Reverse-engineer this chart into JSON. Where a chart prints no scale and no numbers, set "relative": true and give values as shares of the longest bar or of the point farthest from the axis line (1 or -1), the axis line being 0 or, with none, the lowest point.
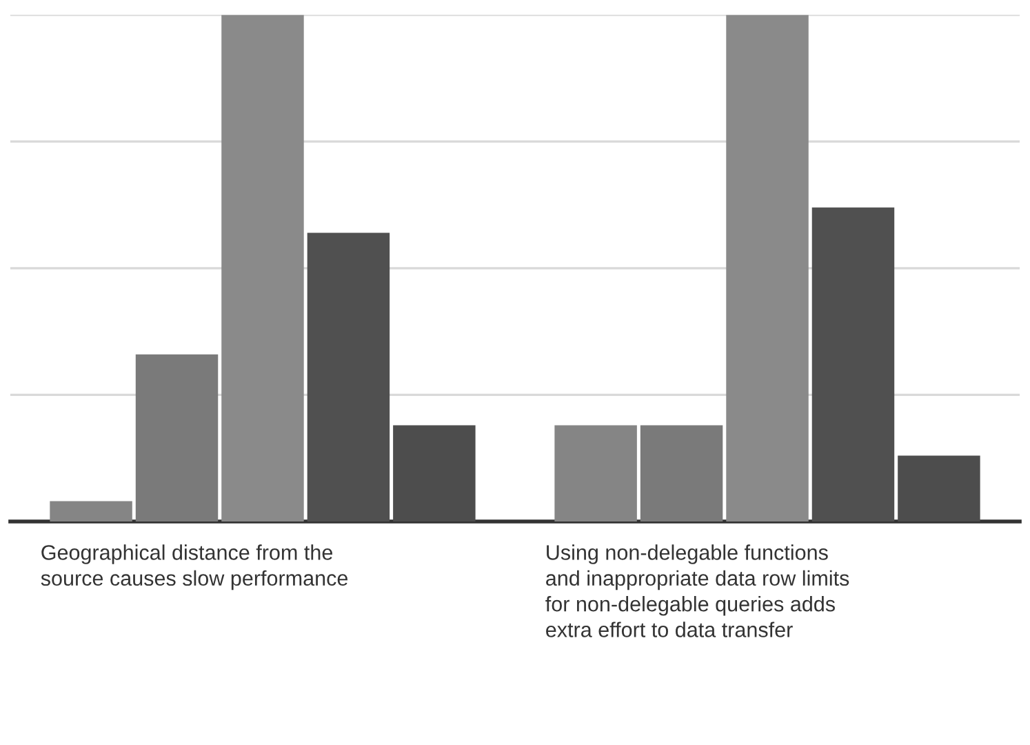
{
  "chart_data": {
    "type": "bar",
    "relative": true,
    "grid": "y",
    "categories": [
      "Geographical distance from the source causes slow performance",
      "Using non-delegable functions and inappropriate data row limits for non-delegable queries adds extra effort to data transfer"
    ],
    "series": [
      {
        "color": "#858585",
        "values": [
          0.04,
          0.19
        ]
      },
      {
        "color": "#7a7a7a",
        "values": [
          0.33,
          0.19
        ]
      },
      {
        "color": "#8a8a8a",
        "values": [
          1,
          1
        ]
      },
      {
        "color": "#505050",
        "values": [
          0.57,
          0.62
        ]
      },
      {
        "color": "#4d4d4d",
        "values": [
          0.19,
          0.13
        ]
      }
    ]
  }
}
